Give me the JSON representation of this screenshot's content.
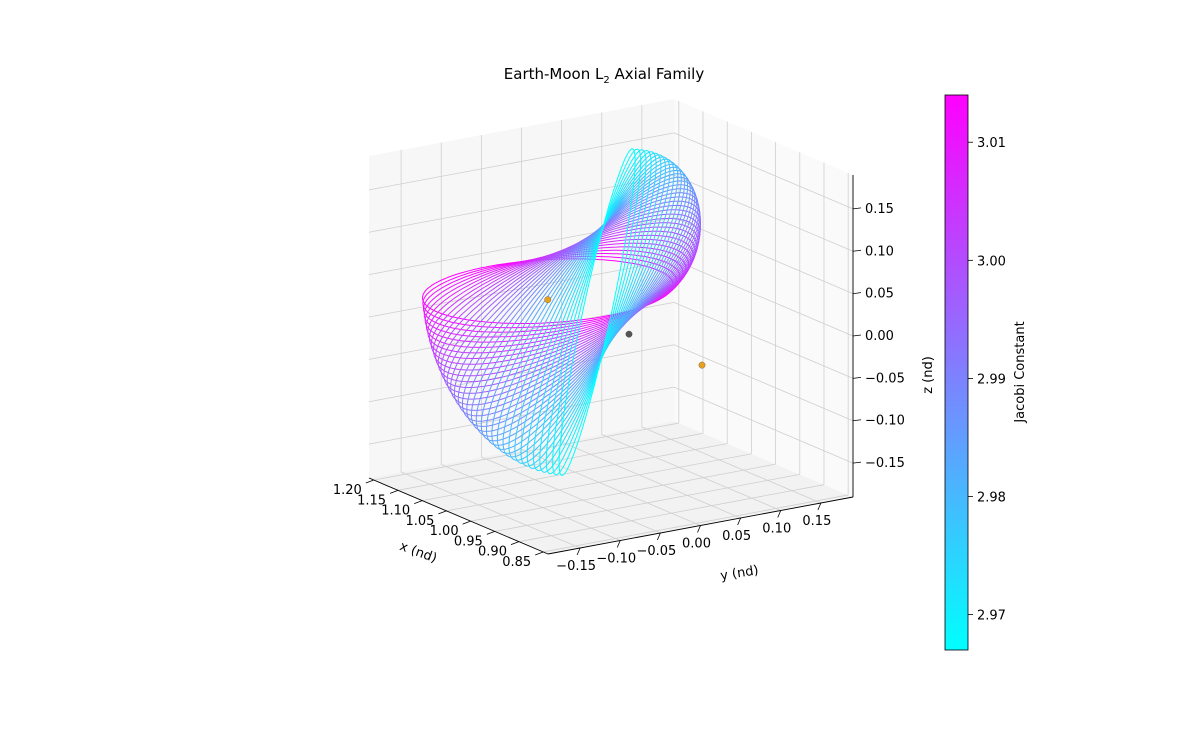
{
  "chart_data": {
    "type": "line",
    "title_main": "Earth-Moon L",
    "title_sub": "2",
    "title_rest": " Axial Family",
    "xlabel": "x (nd)",
    "ylabel": "y (nd)",
    "zlabel": "z (nd)",
    "x_ticks": [
      "0.85",
      "0.90",
      "0.95",
      "1.00",
      "1.05",
      "1.10",
      "1.15",
      "1.20"
    ],
    "y_ticks": [
      "−0.15",
      "−0.10",
      "−0.05",
      "0.00",
      "0.05",
      "0.10",
      "0.15"
    ],
    "z_ticks": [
      "0.15",
      "0.10",
      "0.05",
      "0.00",
      "−0.05",
      "−0.10",
      "−0.15"
    ],
    "xlim": [
      0.84,
      1.21
    ],
    "ylim": [
      -0.19,
      0.19
    ],
    "zlim": [
      -0.19,
      0.19
    ],
    "colorbar": {
      "label": "Jacobi Constant",
      "ticks": [
        "3.01",
        "3.00",
        "2.99",
        "2.98",
        "2.97"
      ],
      "range": [
        2.967,
        3.014
      ],
      "colormap": "cool",
      "color_low": "#00ffff",
      "color_high": "#ff00ff"
    },
    "family": {
      "orbit_count": 36,
      "libration_point_x": 1.1557,
      "amplitude_range": [
        0.11,
        0.19
      ],
      "jacobi_range": [
        2.967,
        3.014
      ]
    },
    "markers": [
      {
        "label": "Moon",
        "x": 0.9878,
        "y": 0.0,
        "z": 0.0,
        "color": "#555555"
      },
      {
        "label": "L1",
        "x": 0.8369,
        "y": 0.0,
        "z": 0.0,
        "color": "#e8a020"
      },
      {
        "label": "L2",
        "x": 1.1557,
        "y": 0.0,
        "z": 0.0,
        "color": "#e8a020"
      }
    ],
    "grid": true
  }
}
